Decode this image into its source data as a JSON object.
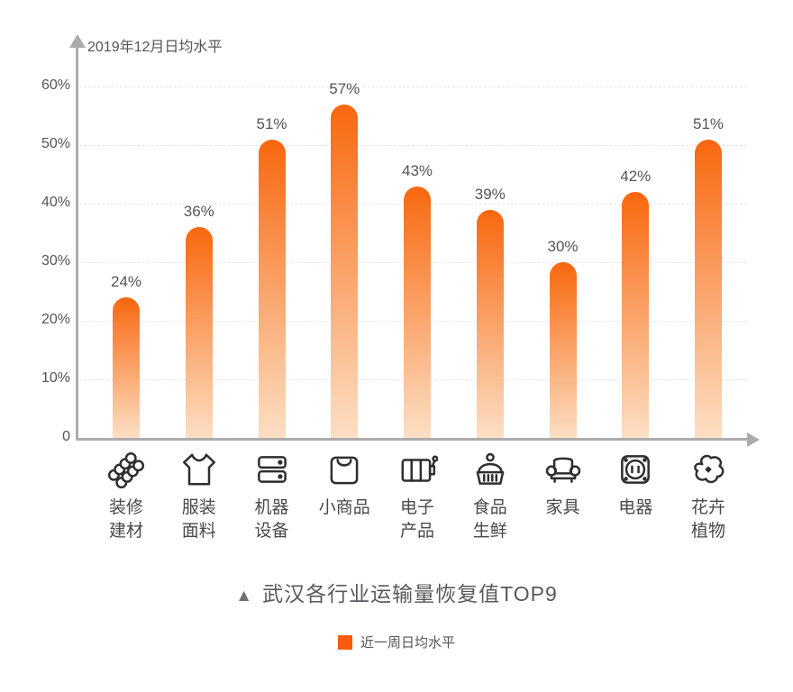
{
  "axis_top_label": "2019年12月日均水平",
  "title": {
    "marker": "▲",
    "text": "武汉各行业运输量恢复值TOP9"
  },
  "legend": {
    "label": "近一周日均水平",
    "color": "#f85c10"
  },
  "colors": {
    "bar_top": "#f8670e",
    "bar_bottom": "#fcdfc4",
    "axis": "#acacac",
    "grid": "#e6e6e6",
    "text": "#555555"
  },
  "chart_data": {
    "type": "bar",
    "title": "武汉各行业运输量恢复值TOP9",
    "series_name": "近一周日均水平",
    "ylabel": "2019年12月日均水平",
    "categories": [
      "装修建材",
      "服装面料",
      "机器设备",
      "小商品",
      "电子产品",
      "食品生鲜",
      "家具",
      "电器",
      "花卉植物"
    ],
    "category_lines": [
      [
        "装修",
        "建材"
      ],
      [
        "服装",
        "面料"
      ],
      [
        "机器",
        "设备"
      ],
      [
        "小商品"
      ],
      [
        "电子",
        "产品"
      ],
      [
        "食品",
        "生鲜"
      ],
      [
        "家具"
      ],
      [
        "电器"
      ],
      [
        "花卉",
        "植物"
      ]
    ],
    "category_icons": [
      "pipes-icon",
      "tshirt-icon",
      "server-icon",
      "shopping-bag-icon",
      "machine-icon",
      "food-cover-icon",
      "sofa-icon",
      "socket-icon",
      "flower-icon"
    ],
    "values": [
      24,
      36,
      51,
      57,
      43,
      39,
      30,
      42,
      51
    ],
    "value_labels": [
      "24%",
      "36%",
      "51%",
      "57%",
      "43%",
      "39%",
      "30%",
      "42%",
      "51%"
    ],
    "ylim": [
      0,
      60
    ],
    "yticks": [
      0,
      10,
      20,
      30,
      40,
      50,
      60
    ],
    "ytick_labels": [
      "0",
      "10%",
      "20%",
      "30%",
      "40%",
      "50%",
      "60%"
    ],
    "grid": true,
    "legend_position": "bottom"
  }
}
